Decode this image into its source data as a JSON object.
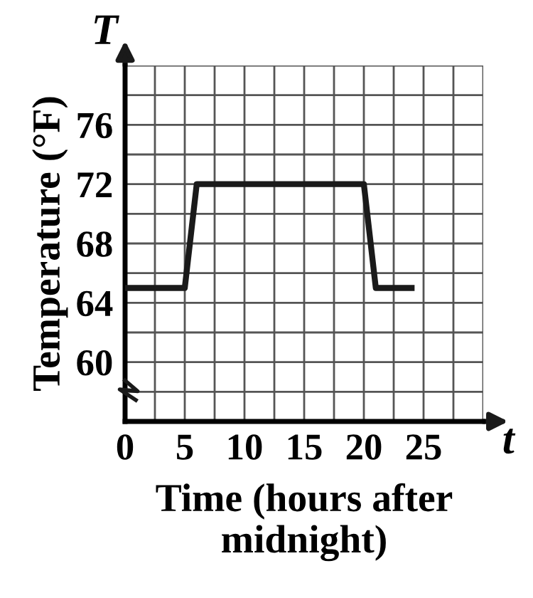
{
  "chart_data": {
    "type": "line",
    "xlabel": "Time (hours after midnight)",
    "ylabel": "Temperature (°F)",
    "annotations": [
      "T",
      "t"
    ],
    "series": [
      {
        "color": "#1a1a1a",
        "x": [
          0,
          5,
          6,
          20,
          21,
          24
        ],
        "values": [
          65,
          65,
          72,
          72,
          65,
          65
        ]
      }
    ],
    "xlim": [
      0,
      30
    ],
    "ylim": [
      56,
      80
    ],
    "xticks": [
      0,
      {
        "value": 2.5,
        "label": null
      },
      5,
      {
        "value": 7.5,
        "label": null
      },
      10,
      {
        "value": 12.5,
        "label": null
      },
      15,
      {
        "value": 17.5,
        "label": null
      },
      20,
      {
        "value": 22.5,
        "label": null
      },
      25,
      {
        "value": 27.5,
        "label": null
      },
      {
        "value": 30,
        "label": null
      }
    ],
    "yticks": [
      {
        "value": 56,
        "label": null
      },
      {
        "value": 58,
        "label": null
      },
      60,
      {
        "value": 62,
        "label": null
      },
      64,
      {
        "value": 66,
        "label": null
      },
      68,
      {
        "value": 70,
        "label": null
      },
      72,
      {
        "value": 74,
        "label": null
      },
      76,
      {
        "value": 78,
        "label": null
      },
      {
        "value": 80,
        "label": null
      }
    ],
    "grid": true,
    "marker": "none",
    "line_style": "solid"
  }
}
